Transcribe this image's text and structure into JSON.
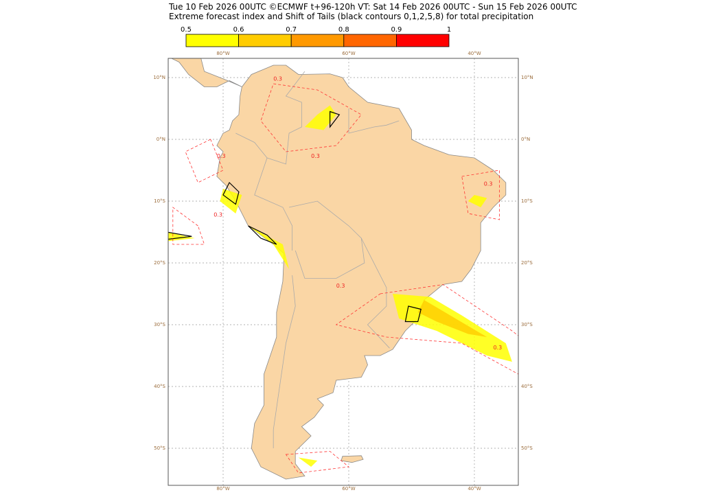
{
  "header": {
    "line1": "Tue 10 Feb 2026 00UTC ©ECMWF t+96-120h  VT: Sat 14 Feb 2026 00UTC - Sun 15 Feb 2026 00UTC",
    "line2": "Extreme forecast index and Shift of Tails (black contours 0,1,2,5,8) for total precipitation"
  },
  "colorbar": {
    "ticks": [
      0.5,
      0.6,
      0.7,
      0.8,
      0.9,
      1
    ],
    "colors": [
      "#ffff00",
      "#ffcc00",
      "#ff9900",
      "#ff6600",
      "#ff0000"
    ]
  },
  "map": {
    "lon_labels": [
      "80°W",
      "60°W",
      "40°W"
    ],
    "lat_labels": [
      "10°N",
      "0°N",
      "10°S",
      "20°S",
      "30°S",
      "40°S",
      "50°S"
    ],
    "contour_labels": [
      "0.3",
      "0.3",
      "0.3",
      "0.3",
      "0.3",
      "0.3",
      "0.3"
    ]
  }
}
